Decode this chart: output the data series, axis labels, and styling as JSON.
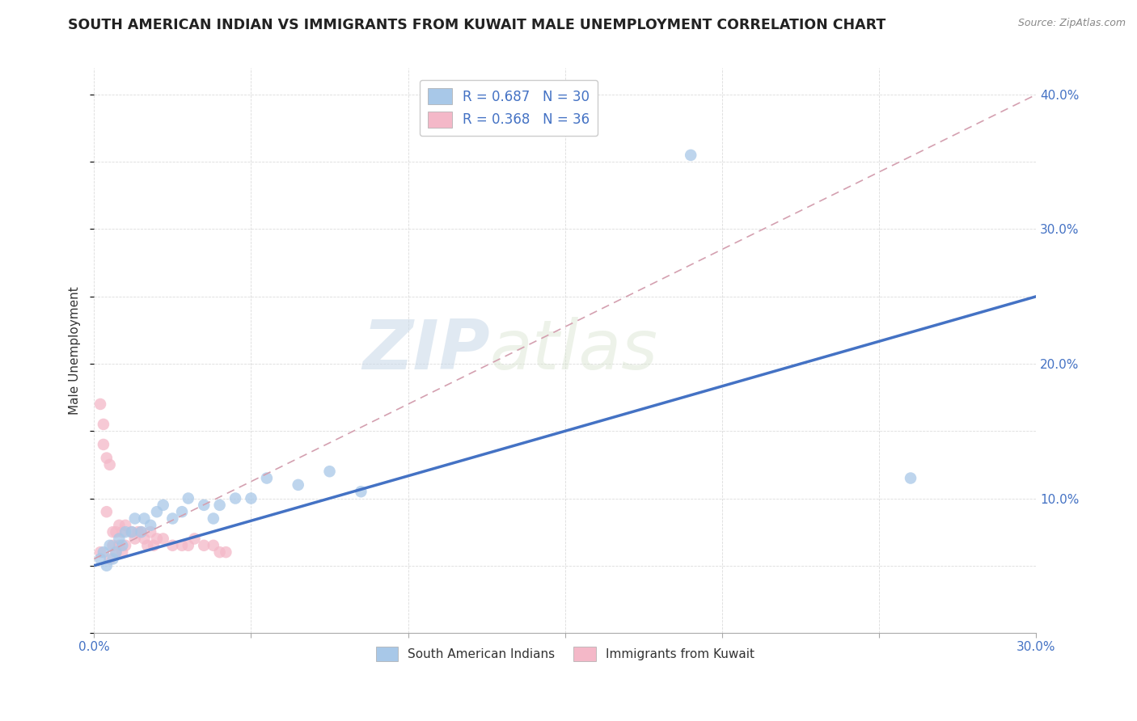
{
  "title": "SOUTH AMERICAN INDIAN VS IMMIGRANTS FROM KUWAIT MALE UNEMPLOYMENT CORRELATION CHART",
  "source": "Source: ZipAtlas.com",
  "ylabel": "Male Unemployment",
  "xlim": [
    0.0,
    0.3
  ],
  "ylim": [
    0.0,
    0.42
  ],
  "xtick_pos": [
    0.0,
    0.05,
    0.1,
    0.15,
    0.2,
    0.25,
    0.3
  ],
  "xtick_labels": [
    "0.0%",
    "",
    "",
    "",
    "",
    "",
    "30.0%"
  ],
  "ytick_pos": [
    0.0,
    0.1,
    0.2,
    0.3,
    0.4
  ],
  "ytick_labels": [
    "",
    "10.0%",
    "20.0%",
    "30.0%",
    "40.0%"
  ],
  "grid_color": "#cccccc",
  "blue_scatter_color": "#a8c8e8",
  "pink_scatter_color": "#f4b8c8",
  "blue_line_color": "#4472c4",
  "pink_line_color": "#d4a0b0",
  "r_blue": 0.687,
  "n_blue": 30,
  "r_pink": 0.368,
  "n_pink": 36,
  "legend_label_blue": "South American Indians",
  "legend_label_pink": "Immigrants from Kuwait",
  "watermark_zip": "ZIP",
  "watermark_atlas": "atlas",
  "blue_line_x0": 0.0,
  "blue_line_y0": 0.05,
  "blue_line_x1": 0.3,
  "blue_line_y1": 0.25,
  "pink_line_x0": 0.0,
  "pink_line_y0": 0.055,
  "pink_line_x1": 0.3,
  "pink_line_y1": 0.4,
  "blue_scatter_x": [
    0.002,
    0.003,
    0.004,
    0.005,
    0.006,
    0.007,
    0.008,
    0.009,
    0.01,
    0.012,
    0.013,
    0.015,
    0.016,
    0.018,
    0.02,
    0.022,
    0.025,
    0.028,
    0.03,
    0.035,
    0.038,
    0.04,
    0.045,
    0.05,
    0.055,
    0.065,
    0.075,
    0.085,
    0.19,
    0.26
  ],
  "blue_scatter_y": [
    0.055,
    0.06,
    0.05,
    0.065,
    0.055,
    0.06,
    0.07,
    0.065,
    0.075,
    0.075,
    0.085,
    0.075,
    0.085,
    0.08,
    0.09,
    0.095,
    0.085,
    0.09,
    0.1,
    0.095,
    0.085,
    0.095,
    0.1,
    0.1,
    0.115,
    0.11,
    0.12,
    0.105,
    0.355,
    0.115
  ],
  "pink_scatter_x": [
    0.002,
    0.002,
    0.003,
    0.003,
    0.004,
    0.004,
    0.005,
    0.005,
    0.006,
    0.006,
    0.007,
    0.007,
    0.008,
    0.008,
    0.009,
    0.009,
    0.01,
    0.01,
    0.012,
    0.013,
    0.014,
    0.015,
    0.016,
    0.017,
    0.018,
    0.019,
    0.02,
    0.022,
    0.025,
    0.028,
    0.03,
    0.032,
    0.035,
    0.038,
    0.04,
    0.042
  ],
  "pink_scatter_y": [
    0.17,
    0.06,
    0.155,
    0.14,
    0.13,
    0.09,
    0.125,
    0.055,
    0.075,
    0.065,
    0.075,
    0.06,
    0.08,
    0.065,
    0.075,
    0.06,
    0.08,
    0.065,
    0.075,
    0.07,
    0.075,
    0.075,
    0.07,
    0.065,
    0.075,
    0.065,
    0.07,
    0.07,
    0.065,
    0.065,
    0.065,
    0.07,
    0.065,
    0.065,
    0.06,
    0.06
  ]
}
